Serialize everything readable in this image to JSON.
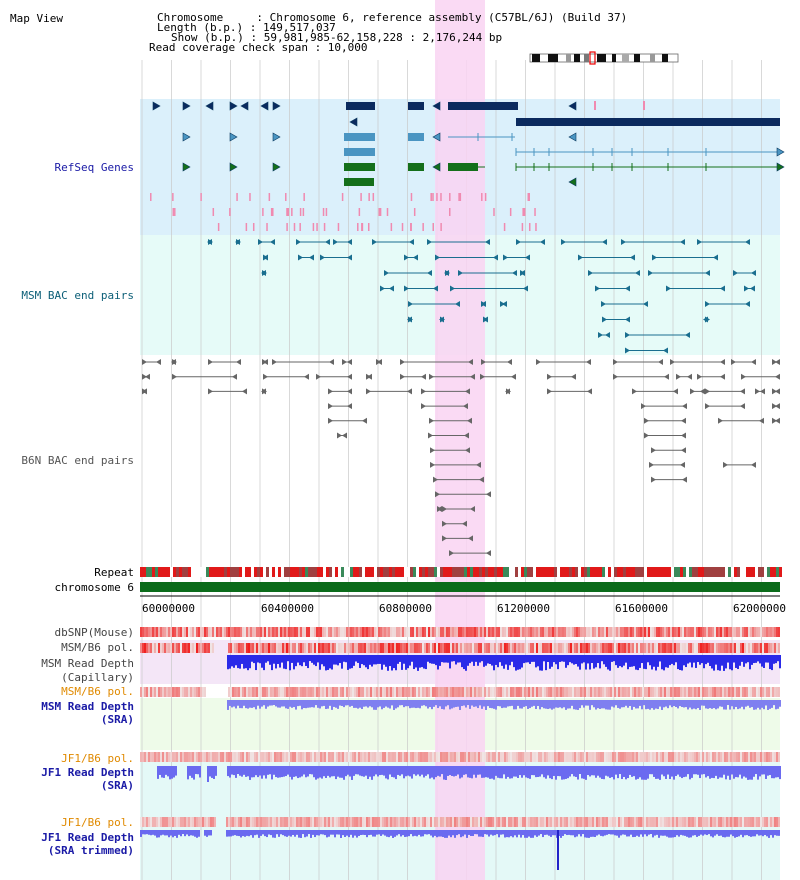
{
  "title": "Map View",
  "info": {
    "chromosome_line": "Chromosome     : Chromosome 6, reference assembly (C57BL/6J) (Build 37)",
    "length_line": "Length (b.p.) : 149,517,037",
    "show_line": "Show (b.p.) : 59,981,985-62,158,228 : 2,176,244 bp",
    "span_line": "Read coverage check span : 10,000"
  },
  "tracks": {
    "refseq": "RefSeq Genes",
    "msm_bac": "MSM BAC end pairs",
    "b6n_bac": "B6N BAC end pairs",
    "repeat": "Repeat",
    "chromosome": "chromosome 6",
    "dbsnp": "dbSNP(Mouse)",
    "msm_b6_pol_1": "MSM/B6 pol.",
    "msm_read_depth_cap_1": "MSM Read Depth",
    "msm_read_depth_cap_2": "(Capillary)",
    "msm_b6_pol_2": "MSM/B6 pol.",
    "msm_read_depth_sra_1": "MSM Read Depth",
    "msm_read_depth_sra_2": "(SRA)",
    "jf1_b6_pol_1": "JF1/B6 pol.",
    "jf1_read_depth_sra_1": "JF1 Read Depth",
    "jf1_read_depth_sra_2": "(SRA)",
    "jf1_b6_pol_2": "JF1/B6 pol.",
    "jf1_read_depth_trim_1": "JF1 Read Depth",
    "jf1_read_depth_trim_2": "(SRA trimmed)"
  },
  "axis": {
    "ticks": [
      "60000000",
      "60400000",
      "60800000",
      "61200000",
      "61600000",
      "62000000"
    ]
  },
  "colors": {
    "refseq_bg": "#dbf0fb",
    "bac_bg": "#e6fbf8",
    "highlight": "#f9d4f2",
    "gene_dark": "#0b2a5e",
    "gene_mid": "#4a95c2",
    "gene_green": "#146f1a",
    "bac_msm": "#1a6e8f",
    "bac_b6n": "#666666",
    "chrom_green": "#0b6b1a",
    "depth_blue": "#2323e0",
    "label_navy": "#1a1aa6",
    "label_orange": "#e08a00",
    "label_teal": "#0b5e77"
  }
}
